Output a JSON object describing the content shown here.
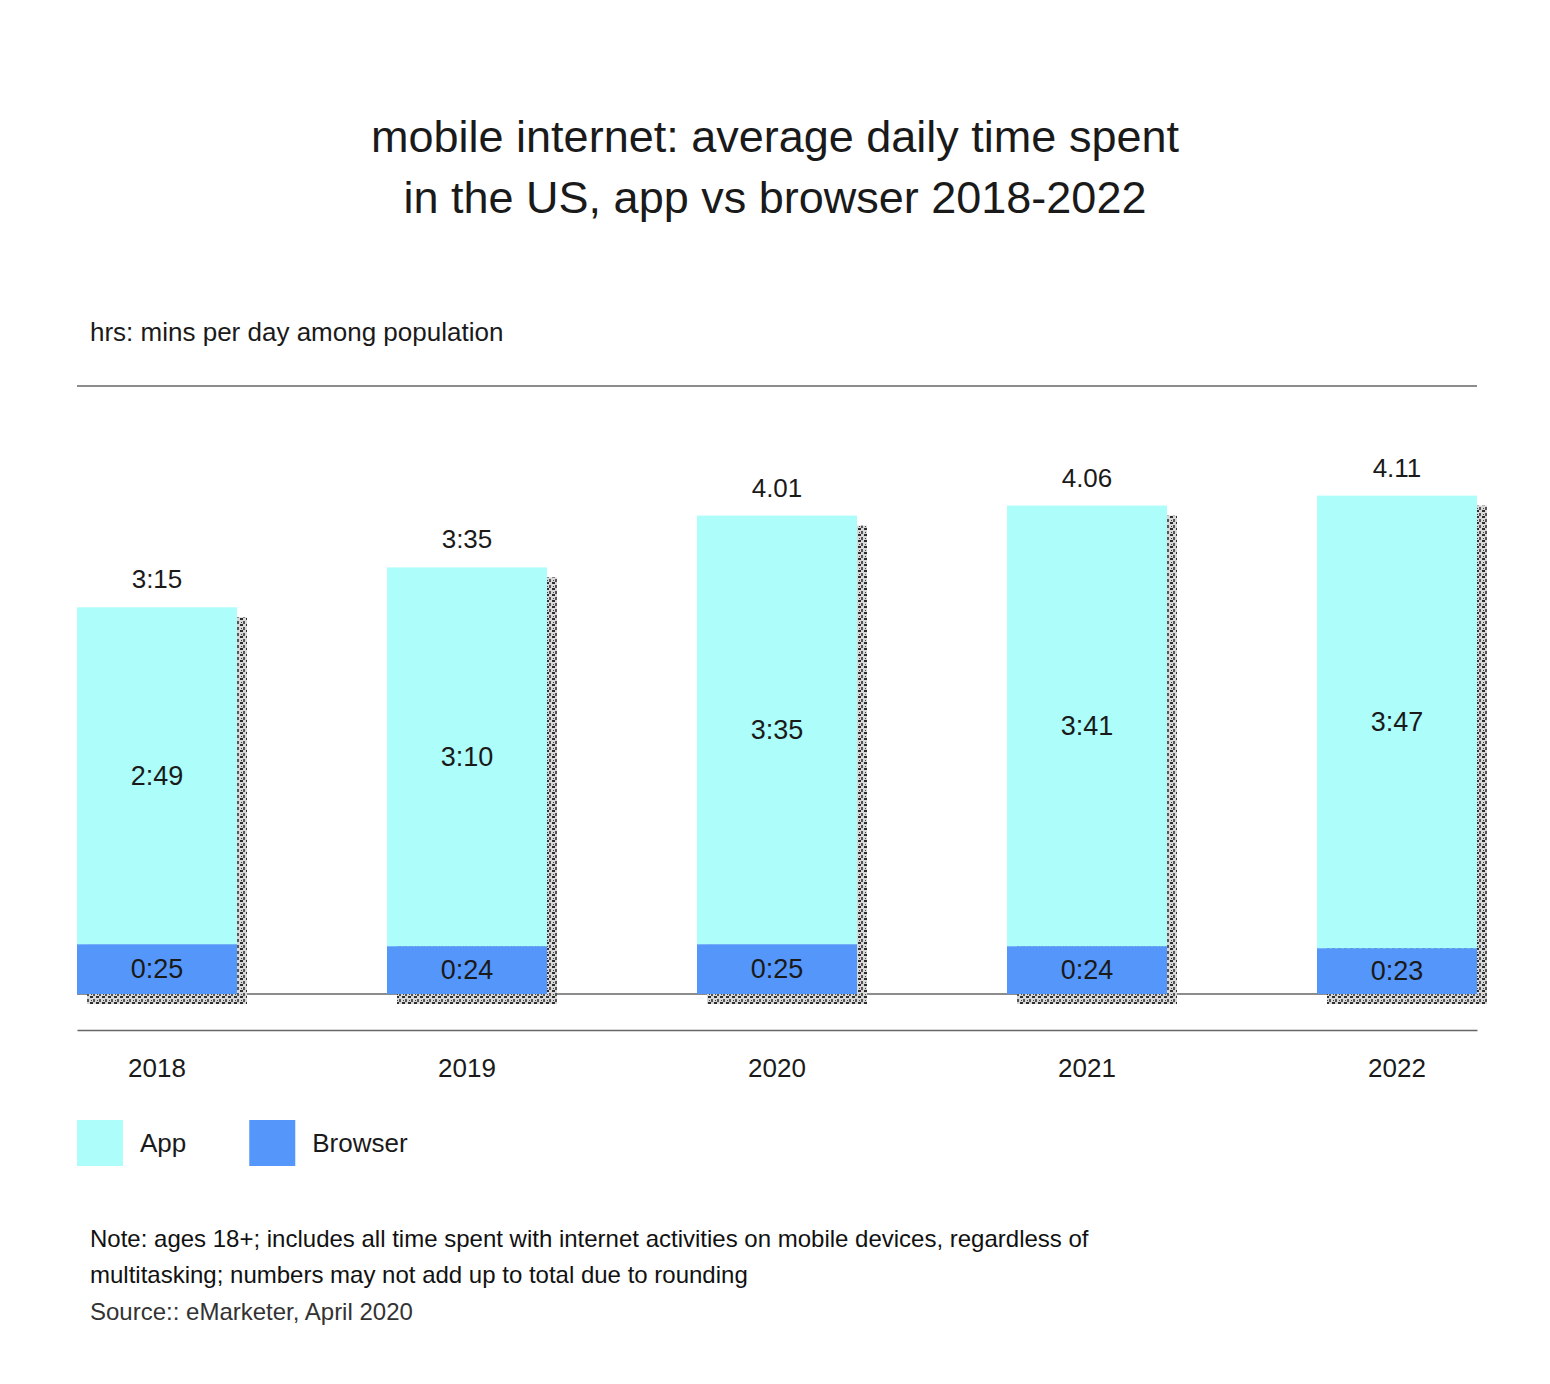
{
  "chart_data": {
    "type": "bar",
    "title": [
      "mobile internet: average daily time spent",
      "in the US, app vs browser 2018-2022"
    ],
    "subtitle": "hrs: mins per day among population",
    "categories": [
      "2018",
      "2019",
      "2020",
      "2021",
      "2022"
    ],
    "series": [
      {
        "name": "App",
        "color": "#adfdfb",
        "values": [
          169,
          190,
          215,
          221,
          227
        ],
        "value_labels": [
          "2:49",
          "3:10",
          "3:35",
          "3:41",
          "3:47"
        ]
      },
      {
        "name": "Browser",
        "color": "#5596fa",
        "values": [
          25,
          24,
          25,
          24,
          23
        ],
        "value_labels": [
          "0:25",
          "0:24",
          "0:25",
          "0:24",
          "0:23"
        ]
      }
    ],
    "totals": {
      "values": [
        195,
        215,
        241,
        246,
        251
      ],
      "value_labels": [
        "3:15",
        "3:35",
        "4.01",
        "4.06",
        "4.11"
      ]
    },
    "stacked": true,
    "data_labels": true,
    "ylim": [
      0,
      305
    ],
    "yticks": [
      0,
      305
    ],
    "grid": true,
    "tick_labels": "x",
    "legend": "bottom-left",
    "note": [
      "Note: ages 18+; includes all time spent with internet activities on mobile devices, regardless of",
      "multitasking; numbers may not add up to total due to rounding"
    ],
    "source": "Source:: eMarketer, April 2020"
  }
}
